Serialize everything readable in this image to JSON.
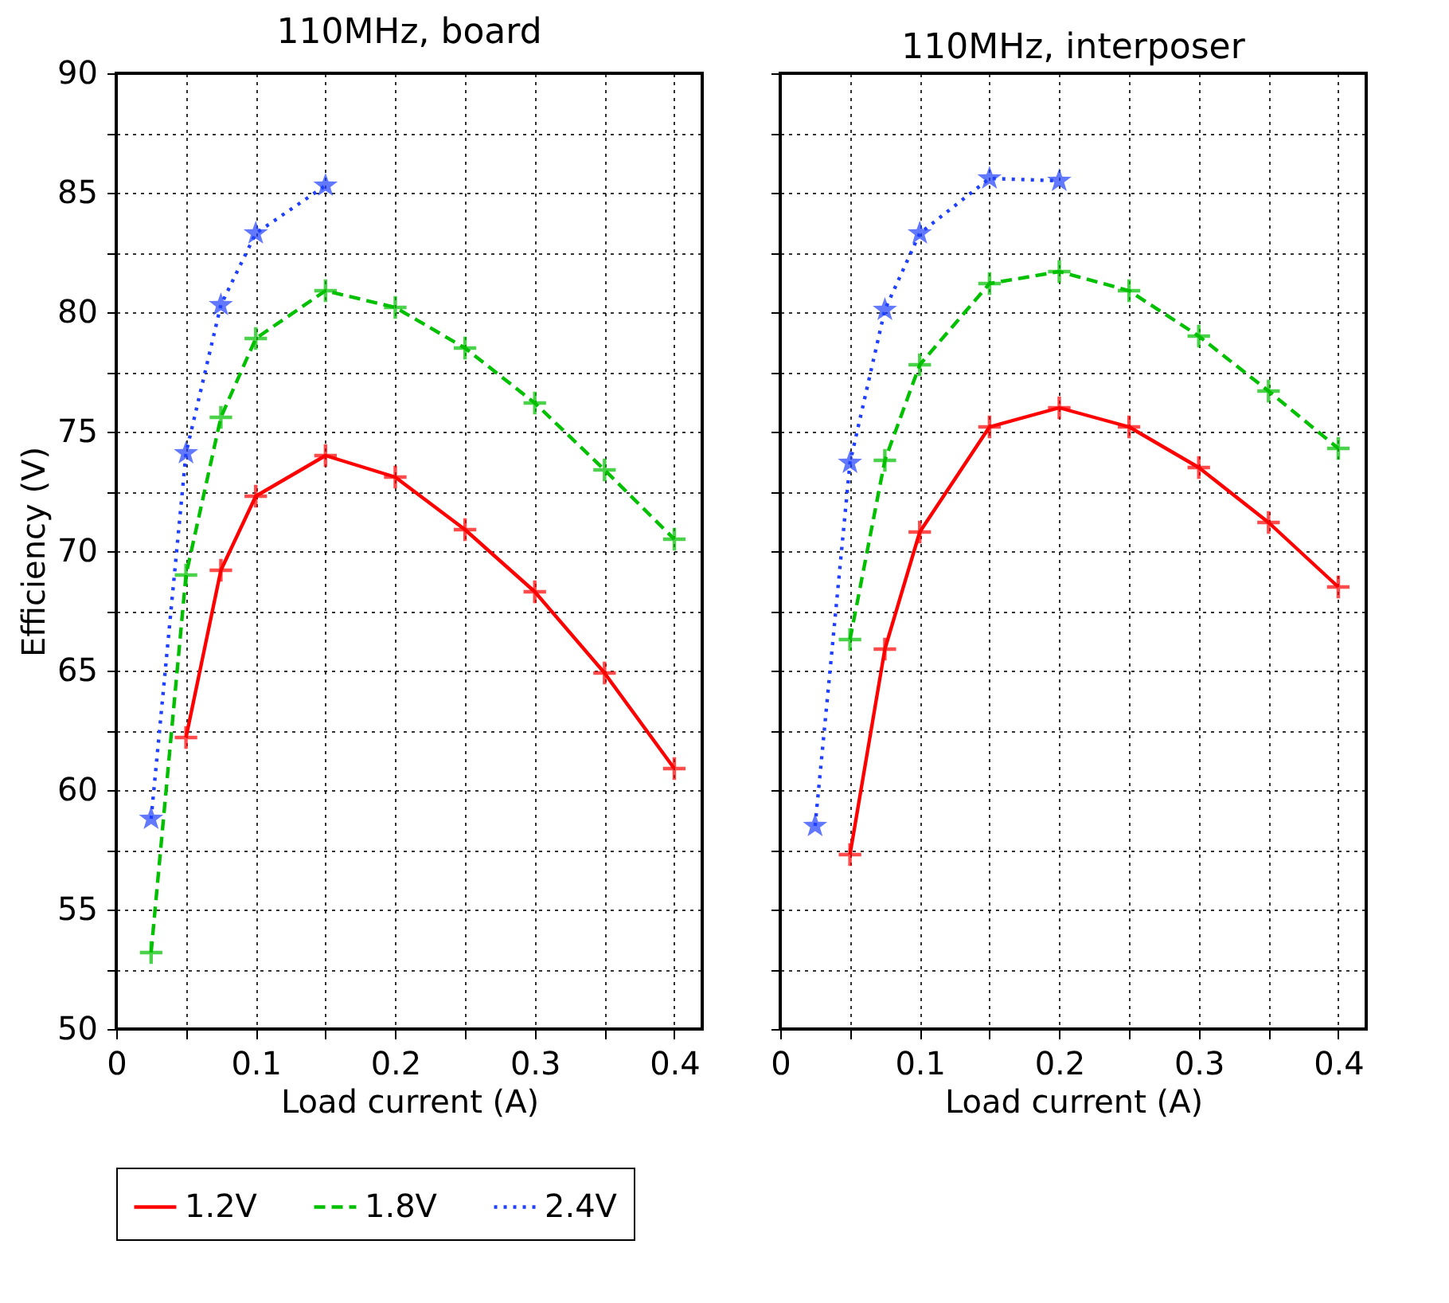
{
  "chart_data": [
    {
      "type": "line",
      "title": "110MHz, board",
      "xlabel": "Load current (A)",
      "ylabel": "Efficiency (V)",
      "xlim": [
        0,
        0.42
      ],
      "ylim": [
        50,
        90
      ],
      "xticks": [
        0,
        {
          "value": 0.05,
          "label": null
        },
        0.1,
        {
          "value": 0.15,
          "label": null
        },
        0.2,
        {
          "value": 0.25,
          "label": null
        },
        0.3,
        {
          "value": 0.35,
          "label": null
        },
        0.4
      ],
      "yticks": [
        50,
        {
          "value": 52.5,
          "label": null
        },
        55,
        {
          "value": 57.5,
          "label": null
        },
        60,
        {
          "value": 62.5,
          "label": null
        },
        65,
        {
          "value": 67.5,
          "label": null
        },
        70,
        {
          "value": 72.5,
          "label": null
        },
        75,
        {
          "value": 77.5,
          "label": null
        },
        80,
        {
          "value": 82.5,
          "label": null
        },
        85,
        {
          "value": 87.5,
          "label": null
        },
        90
      ],
      "grid": true,
      "legend": "bottom",
      "series": [
        {
          "name": "1.2V",
          "color": "#ff0000",
          "marker": "cross",
          "line_style": "solid",
          "x": [
            0.05,
            0.075,
            0.1,
            0.15,
            0.2,
            0.25,
            0.3,
            0.35,
            0.4
          ],
          "values": [
            62.2,
            69.2,
            72.3,
            74.0,
            73.1,
            70.9,
            68.3,
            64.9,
            60.9
          ]
        },
        {
          "name": "1.8V",
          "color": "#00c000",
          "marker": "cross",
          "line_style": "dashed",
          "x": [
            0.025,
            0.05,
            0.075,
            0.1,
            0.15,
            0.2,
            0.25,
            0.3,
            0.35,
            0.4
          ],
          "values": [
            53.2,
            69.0,
            75.6,
            78.9,
            80.9,
            80.2,
            78.5,
            76.2,
            73.4,
            70.5
          ]
        },
        {
          "name": "2.4V",
          "color": "#2040ff",
          "marker": "star",
          "line_style": "dotted",
          "x": [
            0.025,
            0.05,
            0.075,
            0.1,
            0.15
          ],
          "values": [
            58.8,
            74.1,
            80.3,
            83.3,
            85.3
          ]
        }
      ]
    },
    {
      "type": "line",
      "title": "110MHz, interposer",
      "xlabel": "Load current (A)",
      "xlim": [
        0,
        0.42
      ],
      "ylim": [
        50,
        90
      ],
      "tick_labels": "x",
      "xticks": [
        0,
        {
          "value": 0.05,
          "label": null
        },
        0.1,
        {
          "value": 0.15,
          "label": null
        },
        0.2,
        {
          "value": 0.25,
          "label": null
        },
        0.3,
        {
          "value": 0.35,
          "label": null
        },
        0.4
      ],
      "yticks": [
        50,
        {
          "value": 52.5,
          "label": null
        },
        55,
        {
          "value": 57.5,
          "label": null
        },
        60,
        {
          "value": 62.5,
          "label": null
        },
        65,
        {
          "value": 67.5,
          "label": null
        },
        70,
        {
          "value": 72.5,
          "label": null
        },
        75,
        {
          "value": 77.5,
          "label": null
        },
        80,
        {
          "value": 82.5,
          "label": null
        },
        85,
        {
          "value": 87.5,
          "label": null
        },
        90
      ],
      "grid": true,
      "series": [
        {
          "color": "#ff0000",
          "marker": "cross",
          "line_style": "solid",
          "x": [
            0.05,
            0.075,
            0.1,
            0.15,
            0.2,
            0.25,
            0.3,
            0.35,
            0.4
          ],
          "values": [
            57.3,
            65.9,
            70.8,
            75.2,
            76.0,
            75.2,
            73.5,
            71.2,
            68.5
          ]
        },
        {
          "color": "#00c000",
          "marker": "cross",
          "line_style": "dashed",
          "x": [
            0.05,
            0.075,
            0.1,
            0.15,
            0.2,
            0.25,
            0.3,
            0.35,
            0.4
          ],
          "values": [
            66.3,
            73.8,
            77.8,
            81.2,
            81.7,
            80.9,
            79.0,
            76.7,
            74.3
          ]
        },
        {
          "color": "#2040ff",
          "marker": "star",
          "line_style": "dotted",
          "x": [
            0.025,
            0.05,
            0.075,
            0.1,
            0.15,
            0.2
          ],
          "values": [
            58.5,
            73.7,
            80.1,
            83.3,
            85.6,
            85.5
          ]
        }
      ]
    }
  ]
}
